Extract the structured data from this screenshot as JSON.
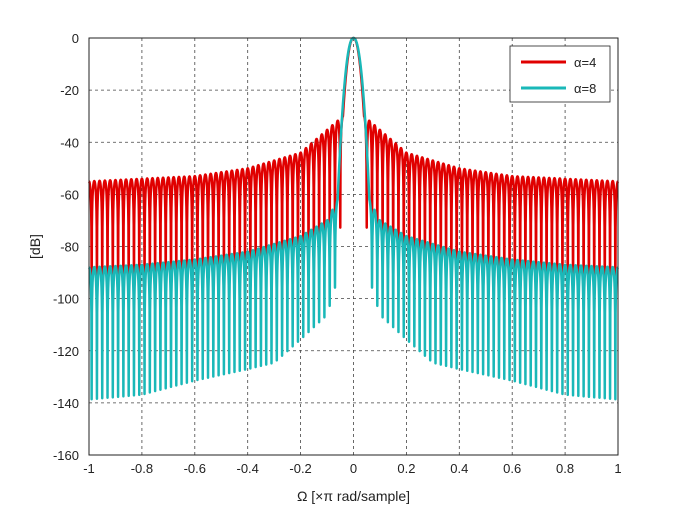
{
  "chart_data": {
    "type": "line",
    "title": "",
    "xlabel": "Ω [×π rad/sample]",
    "ylabel": "[dB]",
    "xlim": [
      -1,
      1
    ],
    "ylim": [
      -160,
      0
    ],
    "xticks": [
      -1,
      -0.8,
      -0.6,
      -0.4,
      -0.2,
      0,
      0.2,
      0.4,
      0.6,
      0.8,
      1
    ],
    "yticks": [
      0,
      -20,
      -40,
      -60,
      -80,
      -100,
      -120,
      -140,
      -160
    ],
    "xtick_labels": [
      "-1",
      "-0.8",
      "-0.6",
      "-0.4",
      "-0.2",
      "0",
      "0.2",
      "0.4",
      "0.6",
      "0.8",
      "1"
    ],
    "ytick_labels": [
      "0",
      "-20",
      "-40",
      "-60",
      "-80",
      "-100",
      "-120",
      "-140",
      "-160"
    ],
    "grid": true,
    "legend_position": "top-right",
    "series": [
      {
        "name": "α=4",
        "color": "#e00000",
        "mainlobe_halfwidth": 0.04,
        "sidelobe_period": 0.02,
        "sidelobe_envelope": [
          [
            0.04,
            -30
          ],
          [
            0.2,
            -44
          ],
          [
            0.4,
            -50
          ],
          [
            0.6,
            -53
          ],
          [
            0.8,
            -54
          ],
          [
            1.0,
            -55
          ]
        ],
        "null_floor": [
          [
            0.04,
            -60
          ],
          [
            0.1,
            -75
          ],
          [
            0.3,
            -80
          ],
          [
            0.6,
            -85
          ],
          [
            1.0,
            -87
          ]
        ]
      },
      {
        "name": "α=8",
        "color": "#1ab8b8",
        "mainlobe_halfwidth": 0.06,
        "sidelobe_period": 0.02,
        "sidelobe_envelope": [
          [
            0.06,
            -62
          ],
          [
            0.1,
            -70
          ],
          [
            0.2,
            -76
          ],
          [
            0.4,
            -82
          ],
          [
            0.6,
            -85
          ],
          [
            0.8,
            -87
          ],
          [
            1.0,
            -88
          ]
        ],
        "null_floor": [
          [
            0.06,
            -80
          ],
          [
            0.1,
            -95
          ],
          [
            0.3,
            -115
          ],
          [
            0.6,
            -122
          ],
          [
            0.8,
            -128
          ],
          [
            1.0,
            -130
          ]
        ]
      }
    ]
  }
}
